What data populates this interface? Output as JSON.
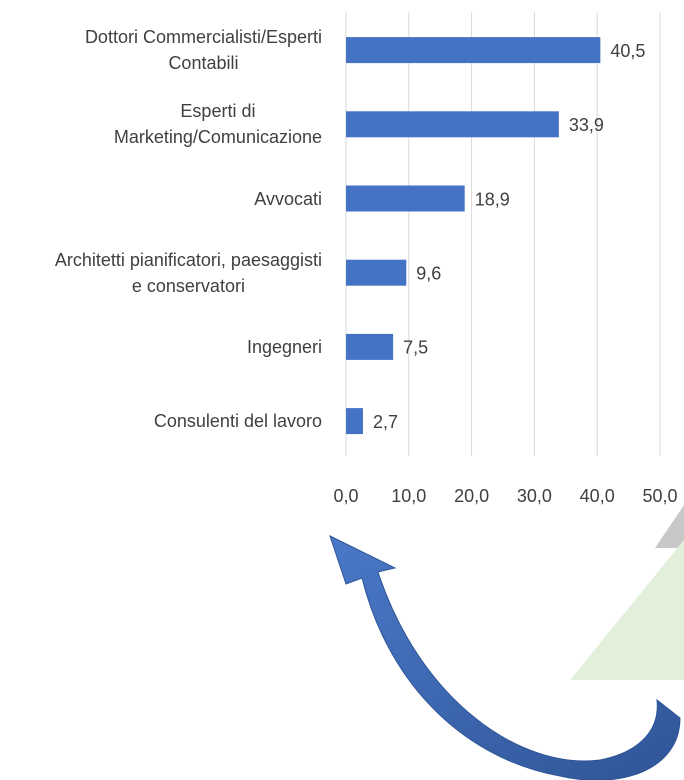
{
  "chart_data": {
    "type": "bar",
    "orientation": "horizontal",
    "categories": [
      "Dottori Commercialisti/Esperti\nContabili",
      "Esperti di\nMarketing/Comunicazione",
      "Avvocati",
      "Architetti pianificatori, paesaggisti\ne conservatori",
      "Ingegneri",
      "Consulenti del lavoro"
    ],
    "values": [
      40.5,
      33.9,
      18.9,
      9.6,
      7.5,
      2.7
    ],
    "value_labels": [
      "40,5",
      "33,9",
      "18,9",
      "9,6",
      "7,5",
      "2,7"
    ],
    "color": "#4472c4",
    "xlim": [
      0,
      50
    ],
    "xticks": [
      {
        "value": 0,
        "label": "0,0"
      },
      {
        "value": 10,
        "label": "10,0"
      },
      {
        "value": 20,
        "label": "20,0"
      },
      {
        "value": 30,
        "label": "30,0"
      },
      {
        "value": 40,
        "label": "40,0"
      },
      {
        "value": 50,
        "label": "50,0"
      }
    ],
    "grid": true
  }
}
